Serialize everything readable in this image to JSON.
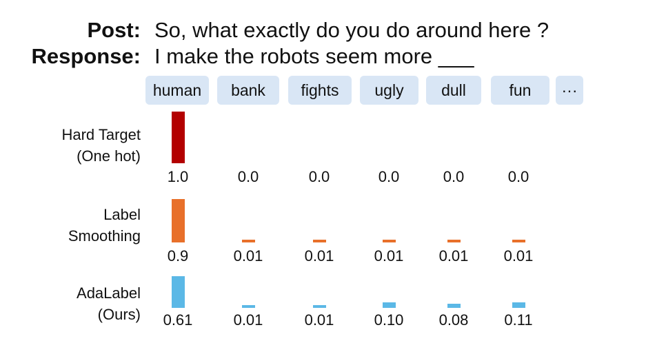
{
  "header": {
    "post_label": "Post:",
    "post_text": "So, what exactly do you do around here ?",
    "response_label": "Response:",
    "response_text": "I make the robots seem more ___"
  },
  "tokens": [
    "human",
    "bank",
    "fights",
    "ugly",
    "dull",
    "fun",
    "···"
  ],
  "colors": {
    "hard": "#b30000",
    "smooth": "#e8702a",
    "ada": "#5bb8e6",
    "token_bg": "#d9e6f5"
  },
  "chart_data": {
    "type": "bar",
    "categories": [
      "human",
      "bank",
      "fights",
      "ugly",
      "dull",
      "fun"
    ],
    "series": [
      {
        "name": "Hard Target (One hot)",
        "label_lines": [
          "Hard Target",
          "(One hot)"
        ],
        "values": [
          1.0,
          0.0,
          0.0,
          0.0,
          0.0,
          0.0
        ],
        "labels": [
          "1.0",
          "0.0",
          "0.0",
          "0.0",
          "0.0",
          "0.0"
        ]
      },
      {
        "name": "Label Smoothing",
        "label_lines": [
          "Label",
          "Smoothing"
        ],
        "values": [
          0.9,
          0.01,
          0.01,
          0.01,
          0.01,
          0.01
        ],
        "labels": [
          "0.9",
          "0.01",
          "0.01",
          "0.01",
          "0.01",
          "0.01"
        ]
      },
      {
        "name": "AdaLabel (Ours)",
        "label_lines": [
          "AdaLabel",
          "(Ours)"
        ],
        "values": [
          0.61,
          0.01,
          0.01,
          0.1,
          0.08,
          0.11
        ],
        "labels": [
          "0.61",
          "0.01",
          "0.01",
          "0.10",
          "0.08",
          "0.11"
        ]
      }
    ]
  }
}
